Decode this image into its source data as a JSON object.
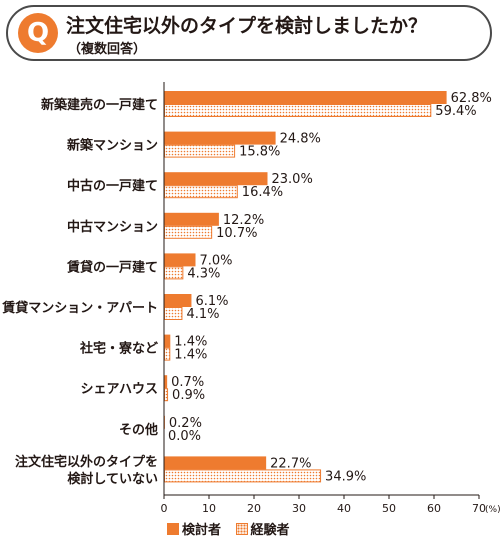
{
  "header": {
    "badge": "Q",
    "title": "注文住宅以外のタイプを検討しましたか？",
    "subtitle": "（複数回答）"
  },
  "colors": {
    "accent": "#ee7b2f",
    "text": "#231815"
  },
  "chart_data": {
    "type": "bar",
    "orientation": "horizontal",
    "categories": [
      "新築建売の一戸建て",
      "新築マンション",
      "中古の一戸建て",
      "中古マンション",
      "賃貸の一戸建て",
      "賃貸マンション・アパート",
      "社宅・寮など",
      "シェアハウス",
      "その他",
      "注文住宅以外のタイプを\n検討していない"
    ],
    "series": [
      {
        "name": "検討者",
        "values": [
          62.8,
          24.8,
          23.0,
          12.2,
          7.0,
          6.1,
          1.4,
          0.7,
          0.2,
          22.7
        ],
        "style": "solid"
      },
      {
        "name": "経験者",
        "values": [
          59.4,
          15.8,
          16.4,
          10.7,
          4.3,
          4.1,
          1.4,
          0.9,
          0.0,
          34.9
        ],
        "style": "dotted"
      }
    ],
    "value_labels": [
      [
        "62.8%",
        "24.8%",
        "23.0%",
        "12.2%",
        "7.0%",
        "6.1%",
        "1.4%",
        "0.7%",
        "0.2%",
        "22.7%"
      ],
      [
        "59.4%",
        "15.8%",
        "16.4%",
        "10.7%",
        "4.3%",
        "4.1%",
        "1.4%",
        "0.9%",
        "0.0%",
        "34.9%"
      ]
    ],
    "xlim": [
      0,
      70
    ],
    "xticks": [
      0,
      10,
      20,
      30,
      40,
      50,
      60,
      70
    ],
    "xunit": "(%)",
    "grid": false,
    "legend_position": "bottom-left"
  }
}
